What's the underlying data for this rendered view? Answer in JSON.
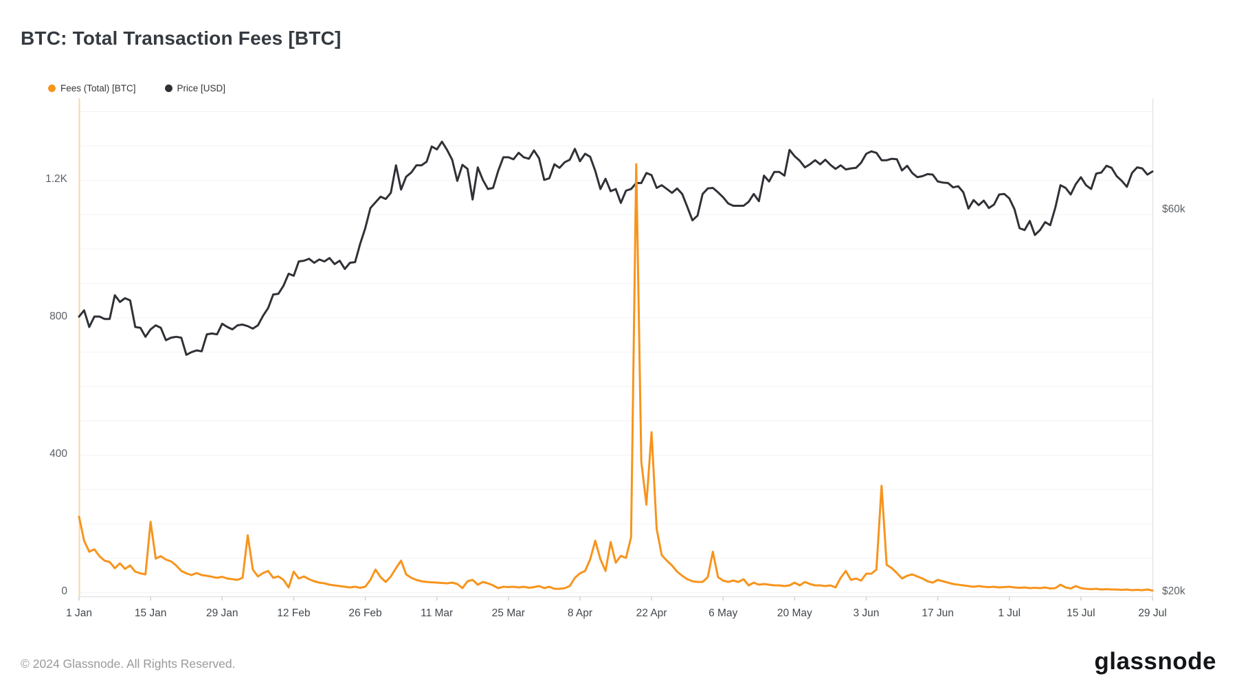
{
  "header": {
    "title": "BTC: Total Transaction Fees [BTC]"
  },
  "legend": [
    {
      "label": "Fees (Total) [BTC]",
      "color": "#f7941c"
    },
    {
      "label": "Price [USD]",
      "color": "#2f3136"
    }
  ],
  "footer": {
    "copyright": "© 2024 Glassnode. All Rights Reserved.",
    "brand": "glassnode"
  },
  "chart_data": {
    "type": "line",
    "title": "BTC: Total Transaction Fees [BTC]",
    "grid": true,
    "legend_position": "top-left",
    "x": {
      "start_date": "1 Jan",
      "end_date": "29 Jul",
      "interval_days": 1,
      "tick_labels": [
        "1 Jan",
        "15 Jan",
        "29 Jan",
        "12 Feb",
        "26 Feb",
        "11 Mar",
        "25 Mar",
        "8 Apr",
        "22 Apr",
        "6 May",
        "20 May",
        "3 Jun",
        "17 Jun",
        "1 Jul",
        "15 Jul",
        "29 Jul"
      ],
      "tick_spacing_days": 14
    },
    "left_axis": {
      "series": "Fees (Total) [BTC]",
      "scale": "linear",
      "ticks": [
        {
          "value": 0,
          "label": "0"
        },
        {
          "value": 400,
          "label": "400"
        },
        {
          "value": 800,
          "label": "800"
        },
        {
          "value": 1200,
          "label": "1.2K"
        }
      ],
      "minor_grid_step": 100,
      "range": [
        0,
        1438
      ]
    },
    "right_axis": {
      "series": "Price [USD]",
      "scale": "log",
      "ticks": [
        {
          "value": 20000,
          "label": "$20k"
        },
        {
          "value": 60000,
          "label": "$60k"
        }
      ]
    },
    "series": [
      {
        "name": "Fees (Total) [BTC]",
        "axis": "left",
        "color": "#f7941c",
        "unit": "BTC",
        "values": [
          220,
          150,
          118,
          125,
          105,
          92,
          88,
          70,
          84,
          68,
          78,
          60,
          55,
          52,
          205,
          98,
          105,
          95,
          90,
          78,
          62,
          55,
          50,
          56,
          50,
          48,
          45,
          42,
          45,
          40,
          38,
          36,
          42,
          166,
          66,
          46,
          56,
          62,
          42,
          46,
          36,
          14,
          60,
          40,
          46,
          38,
          32,
          28,
          26,
          22,
          20,
          18,
          16,
          14,
          16,
          13,
          16,
          36,
          66,
          44,
          30,
          46,
          70,
          92,
          52,
          42,
          36,
          32,
          30,
          29,
          28,
          27,
          26,
          28,
          24,
          12,
          32,
          36,
          22,
          30,
          26,
          20,
          12,
          16,
          15,
          16,
          14,
          16,
          13,
          15,
          18,
          12,
          16,
          10,
          10,
          12,
          18,
          42,
          55,
          62,
          96,
          150,
          96,
          62,
          146,
          86,
          106,
          100,
          160,
          1246,
          380,
          255,
          466,
          185,
          108,
          92,
          78,
          60,
          48,
          38,
          32,
          30,
          30,
          44,
          118,
          44,
          34,
          30,
          34,
          30,
          38,
          20,
          28,
          22,
          24,
          22,
          20,
          20,
          18,
          20,
          28,
          20,
          30,
          24,
          20,
          20,
          18,
          20,
          14,
          42,
          62,
          36,
          40,
          34,
          54,
          54,
          66,
          310,
          80,
          70,
          56,
          40,
          48,
          52,
          46,
          40,
          32,
          28,
          36,
          32,
          28,
          24,
          22,
          20,
          18,
          16,
          18,
          16,
          15,
          16,
          14,
          15,
          16,
          14,
          13,
          14,
          12,
          13,
          12,
          14,
          11,
          12,
          22,
          14,
          11,
          18,
          12,
          10,
          9,
          10,
          8,
          9,
          8,
          8,
          7,
          8,
          6,
          7,
          6,
          8,
          5
        ]
      },
      {
        "name": "Price [USD]",
        "axis": "right",
        "color": "#2f3136",
        "unit": "USD (thousands)",
        "values": [
          44.2,
          45.0,
          42.9,
          44.2,
          44.2,
          43.9,
          43.9,
          47.0,
          46.1,
          46.6,
          46.3,
          42.9,
          42.8,
          41.7,
          42.6,
          43.1,
          42.8,
          41.3,
          41.6,
          41.7,
          41.6,
          39.6,
          39.9,
          40.1,
          40.0,
          42.0,
          42.1,
          42.0,
          43.3,
          42.9,
          42.6,
          43.1,
          43.2,
          43.0,
          42.7,
          43.1,
          44.3,
          45.3,
          47.1,
          47.2,
          48.3,
          50.0,
          49.7,
          51.8,
          51.9,
          52.2,
          51.6,
          52.1,
          51.8,
          52.3,
          51.4,
          51.9,
          50.7,
          51.6,
          51.7,
          54.5,
          57.0,
          60.4,
          61.4,
          62.4,
          62.0,
          63.1,
          68.3,
          63.7,
          66.1,
          66.9,
          68.3,
          68.3,
          69.0,
          72.1,
          71.5,
          73.1,
          71.4,
          69.4,
          65.3,
          68.4,
          67.6,
          61.9,
          67.9,
          65.5,
          63.8,
          64.0,
          67.2,
          69.9,
          69.9,
          69.5,
          70.8,
          69.9,
          69.6,
          71.3,
          69.7,
          65.5,
          65.8,
          68.5,
          67.8,
          68.9,
          69.4,
          71.6,
          69.1,
          70.6,
          70.0,
          67.2,
          63.8,
          65.7,
          63.4,
          63.8,
          61.3,
          63.5,
          63.8,
          64.9,
          64.9,
          66.8,
          66.4,
          64.0,
          64.5,
          63.8,
          63.1,
          63.9,
          62.9,
          60.6,
          58.3,
          59.1,
          62.9,
          63.9,
          64.0,
          63.2,
          62.3,
          61.2,
          60.8,
          60.8,
          60.8,
          61.5,
          62.9,
          61.6,
          66.3,
          65.2,
          67.0,
          67.0,
          66.3,
          71.4,
          70.1,
          69.2,
          67.9,
          68.5,
          69.3,
          68.5,
          69.4,
          68.4,
          67.6,
          68.3,
          67.5,
          67.7,
          67.8,
          68.8,
          70.6,
          71.1,
          70.8,
          69.3,
          69.3,
          69.6,
          69.5,
          67.3,
          68.2,
          66.8,
          66.0,
          66.2,
          66.6,
          66.5,
          65.2,
          65.0,
          64.9,
          64.1,
          64.3,
          63.2,
          60.3,
          61.8,
          60.9,
          61.7,
          60.4,
          61.0,
          62.8,
          62.9,
          62.1,
          60.2,
          57.0,
          56.7,
          58.2,
          55.9,
          56.7,
          58.0,
          57.5,
          60.5,
          64.5,
          64.0,
          62.8,
          64.7,
          66.0,
          64.5,
          63.8,
          66.7,
          66.9,
          68.2,
          67.8,
          66.2,
          65.3,
          64.2,
          66.8,
          67.9,
          67.7,
          66.5,
          67.1
        ]
      }
    ]
  },
  "style_colors": {
    "fees_line": "#f7941c",
    "price_line": "#2f3136",
    "left_axis_border": "#fbd6a2",
    "plot_border": "#e6e6e8",
    "gridline": "#f3f3f4",
    "tick": "#cfd1d3"
  }
}
